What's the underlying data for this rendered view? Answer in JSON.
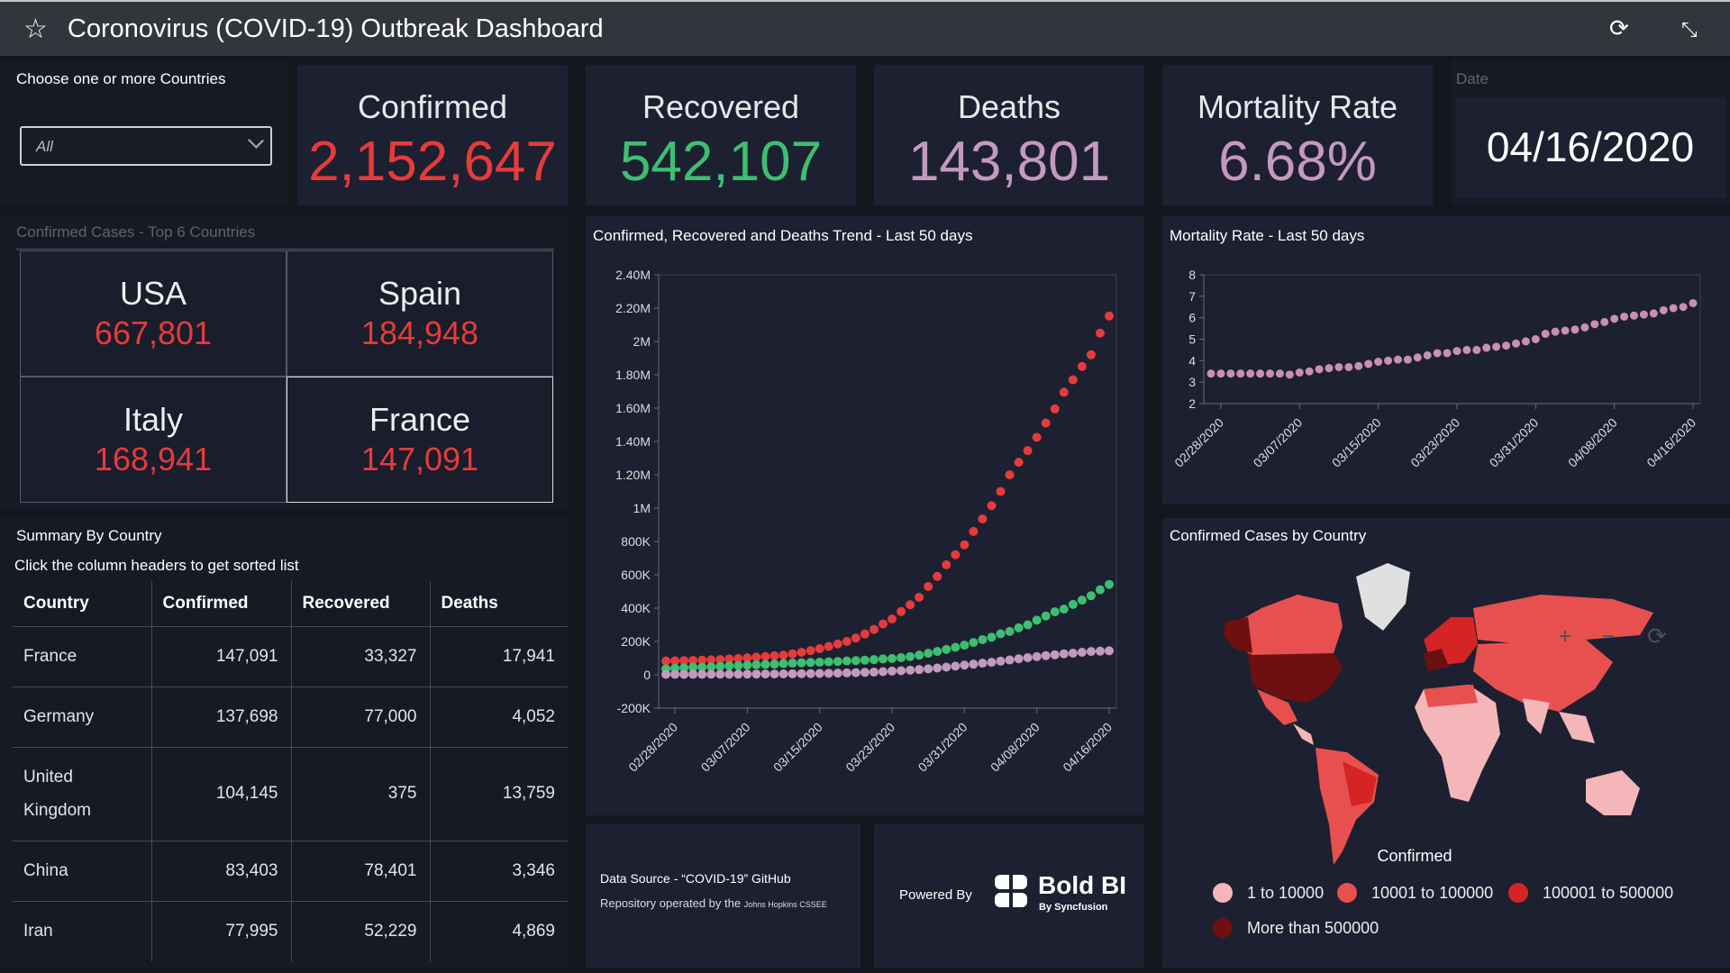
{
  "header": {
    "title": "Coronovirus (COVID-19) Outbreak Dashboard"
  },
  "filter": {
    "label": "Choose one or more Countries",
    "value": "All"
  },
  "kpis": {
    "confirmed": {
      "label": "Confirmed",
      "value": "2,152,647",
      "color": "#e63b3b"
    },
    "recovered": {
      "label": "Recovered",
      "value": "542,107",
      "color": "#3dbf72"
    },
    "deaths": {
      "label": "Deaths",
      "value": "143,801",
      "color": "#c39abd"
    },
    "mortality": {
      "label": "Mortality Rate",
      "value": "6.68%",
      "color": "#c39abd"
    },
    "date": {
      "label": "Date",
      "value": "04/16/2020"
    }
  },
  "top6": {
    "title": "Confirmed Cases - Top 6 Countries",
    "items": [
      {
        "country": "USA",
        "value": "667,801"
      },
      {
        "country": "Spain",
        "value": "184,948"
      },
      {
        "country": "Italy",
        "value": "168,941"
      },
      {
        "country": "France",
        "value": "147,091"
      }
    ]
  },
  "summary": {
    "title": "Summary By Country",
    "subtitle": "Click the column headers to get sorted list",
    "columns": [
      "Country",
      "Confirmed",
      "Recovered",
      "Deaths"
    ],
    "rows": [
      [
        "France",
        "147,091",
        "33,327",
        "17,941"
      ],
      [
        "Germany",
        "137,698",
        "77,000",
        "4,052"
      ],
      [
        "United Kingdom",
        "104,145",
        "375",
        "13,759"
      ],
      [
        "China",
        "83,403",
        "78,401",
        "3,346"
      ],
      [
        "Iran",
        "77,995",
        "52,229",
        "4,869"
      ]
    ]
  },
  "footer": {
    "source_line1": "Data Source - “COVID-19” GitHub",
    "source_line2": "Repository operated by the",
    "source_org": "Johns Hopkins CSSEE",
    "powered_by": "Powered By",
    "brand": "Bold BI",
    "brand_sub": "By Syncfusion"
  },
  "map": {
    "title": "Confirmed Cases by Country",
    "legend_title": "Confirmed",
    "legend": [
      {
        "label": "1 to 10000",
        "color": "#f4b6b8"
      },
      {
        "label": "10001 to 100000",
        "color": "#e8504f"
      },
      {
        "label": "100001 to 500000",
        "color": "#d42424"
      },
      {
        "label": "More than 500000",
        "color": "#6e1010"
      }
    ]
  },
  "chart_data": [
    {
      "type": "scatter",
      "title": "Confirmed, Recovered and Deaths Trend - Last 50 days",
      "ylim": [
        -200000,
        2400000
      ],
      "yticks": [
        "-200K",
        "0",
        "200K",
        "400K",
        "600K",
        "800K",
        "1M",
        "1.20M",
        "1.40M",
        "1.60M",
        "1.80M",
        "2M",
        "2.20M",
        "2.40M"
      ],
      "xticks": [
        "02/28/2020",
        "03/07/2020",
        "03/15/2020",
        "03/23/2020",
        "03/31/2020",
        "04/08/2020",
        "04/16/2020"
      ],
      "series": [
        {
          "name": "Confirmed",
          "color": "#e63b3b",
          "values": [
            83000,
            84000,
            85000,
            86000,
            88000,
            90000,
            92000,
            95000,
            98000,
            102000,
            106000,
            110000,
            114000,
            118000,
            126000,
            135000,
            145000,
            157000,
            170000,
            185000,
            200000,
            220000,
            245000,
            272000,
            305000,
            335000,
            380000,
            420000,
            465000,
            530000,
            590000,
            660000,
            720000,
            780000,
            860000,
            935000,
            1015000,
            1100000,
            1200000,
            1275000,
            1345000,
            1425000,
            1510000,
            1595000,
            1695000,
            1770000,
            1850000,
            1920000,
            2050000,
            2152647
          ]
        },
        {
          "name": "Recovered",
          "color": "#3dbf72",
          "values": [
            36000,
            39000,
            42000,
            45000,
            46000,
            48000,
            51000,
            53000,
            55000,
            58000,
            60000,
            62000,
            64000,
            67000,
            70000,
            72000,
            74000,
            76000,
            78000,
            80000,
            83000,
            85000,
            88000,
            91000,
            95000,
            98000,
            103000,
            109000,
            118000,
            129000,
            140000,
            152000,
            165000,
            178000,
            194000,
            211000,
            226000,
            246000,
            260000,
            282000,
            300000,
            328000,
            353000,
            378000,
            394000,
            422000,
            448000,
            474000,
            510000,
            542107
          ]
        },
        {
          "name": "Deaths",
          "color": "#c39abd",
          "values": [
            2800,
            2900,
            3000,
            3100,
            3200,
            3300,
            3500,
            3600,
            3800,
            4000,
            4300,
            4600,
            5000,
            5400,
            5800,
            6500,
            7200,
            8000,
            9000,
            10000,
            11400,
            13000,
            14600,
            16500,
            19000,
            22000,
            24500,
            28000,
            31500,
            35500,
            40500,
            46000,
            52000,
            58000,
            64000,
            69500,
            75000,
            82000,
            89000,
            96000,
            103000,
            109000,
            115000,
            120000,
            126000,
            130000,
            135000,
            140000,
            142000,
            143801
          ]
        }
      ]
    },
    {
      "type": "scatter",
      "title": "Mortality Rate - Last 50 days",
      "ylim": [
        2,
        8
      ],
      "yticks": [
        "2",
        "3",
        "4",
        "5",
        "6",
        "7",
        "8"
      ],
      "xticks": [
        "02/28/2020",
        "03/07/2020",
        "03/15/2020",
        "03/23/2020",
        "03/31/2020",
        "04/08/2020",
        "04/16/2020"
      ],
      "series": [
        {
          "name": "Mortality Rate",
          "color": "#c98fb4",
          "values": [
            3.4,
            3.4,
            3.4,
            3.4,
            3.4,
            3.4,
            3.4,
            3.4,
            3.35,
            3.45,
            3.5,
            3.6,
            3.65,
            3.7,
            3.7,
            3.75,
            3.85,
            3.95,
            4.0,
            4.05,
            4.05,
            4.15,
            4.25,
            4.35,
            4.35,
            4.45,
            4.5,
            4.5,
            4.6,
            4.65,
            4.7,
            4.8,
            4.9,
            5.0,
            5.25,
            5.35,
            5.4,
            5.45,
            5.55,
            5.7,
            5.8,
            5.95,
            6.05,
            6.1,
            6.15,
            6.2,
            6.35,
            6.45,
            6.5,
            6.68
          ]
        }
      ]
    }
  ]
}
